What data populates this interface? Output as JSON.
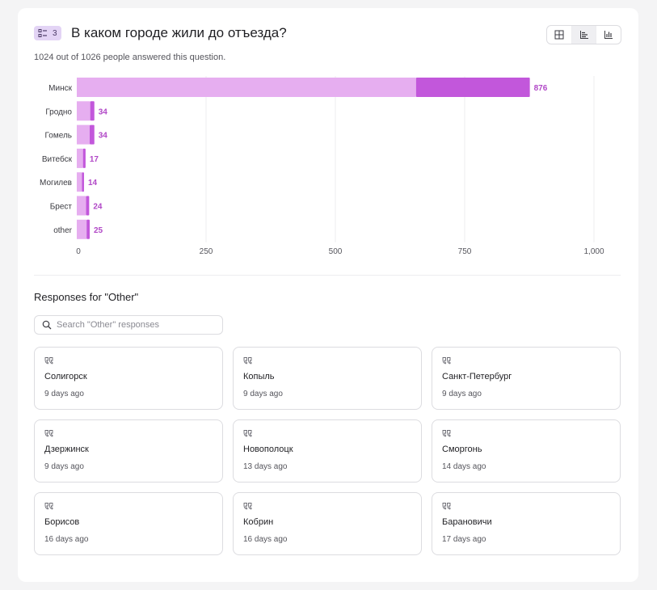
{
  "question": {
    "badge_number": "3",
    "title": "В каком городе жили до отъезда?",
    "answered_text": "1024 out of 1026 people answered this question."
  },
  "colors": {
    "bar_light": "#e6aef0",
    "bar_dark": "#c257db",
    "value_label": "#b148c7",
    "badge_bg": "#e3d4f5"
  },
  "view_toggle": {
    "icons": [
      "grid-icon",
      "horizontal-bar-chart-icon",
      "vertical-bar-chart-icon"
    ],
    "active": "horizontal-bar-chart-icon"
  },
  "chart_data": {
    "type": "bar",
    "orientation": "horizontal",
    "stacked": true,
    "categories": [
      "Минск",
      "Гродно",
      "Гомель",
      "Витебск",
      "Могилев",
      "Брест",
      "other"
    ],
    "values": [
      876,
      34,
      34,
      17,
      14,
      24,
      25
    ],
    "series": [
      {
        "values": [
          656,
          26,
          25,
          12,
          10,
          18,
          19
        ]
      },
      {
        "values": [
          220,
          8,
          9,
          5,
          4,
          6,
          6
        ]
      }
    ],
    "x_ticks": [
      "0",
      "250",
      "500",
      "750",
      "1,000"
    ],
    "xlim": [
      0,
      1000
    ],
    "grid": true
  },
  "other_responses": {
    "title": "Responses for \"Other\"",
    "search_placeholder": "Search \"Other\" responses",
    "items": [
      {
        "text": "Солигорск",
        "time": "9 days ago"
      },
      {
        "text": "Копыль",
        "time": "9 days ago"
      },
      {
        "text": "Санкт-Петербург",
        "time": "9 days ago"
      },
      {
        "text": "Дзержинск",
        "time": "9 days ago"
      },
      {
        "text": "Новополоцк",
        "time": "13 days ago"
      },
      {
        "text": "Сморгонь",
        "time": "14 days ago"
      },
      {
        "text": "Борисов",
        "time": "16 days ago"
      },
      {
        "text": "Кобрин",
        "time": "16 days ago"
      },
      {
        "text": "Барановичи",
        "time": "17 days ago"
      }
    ]
  }
}
